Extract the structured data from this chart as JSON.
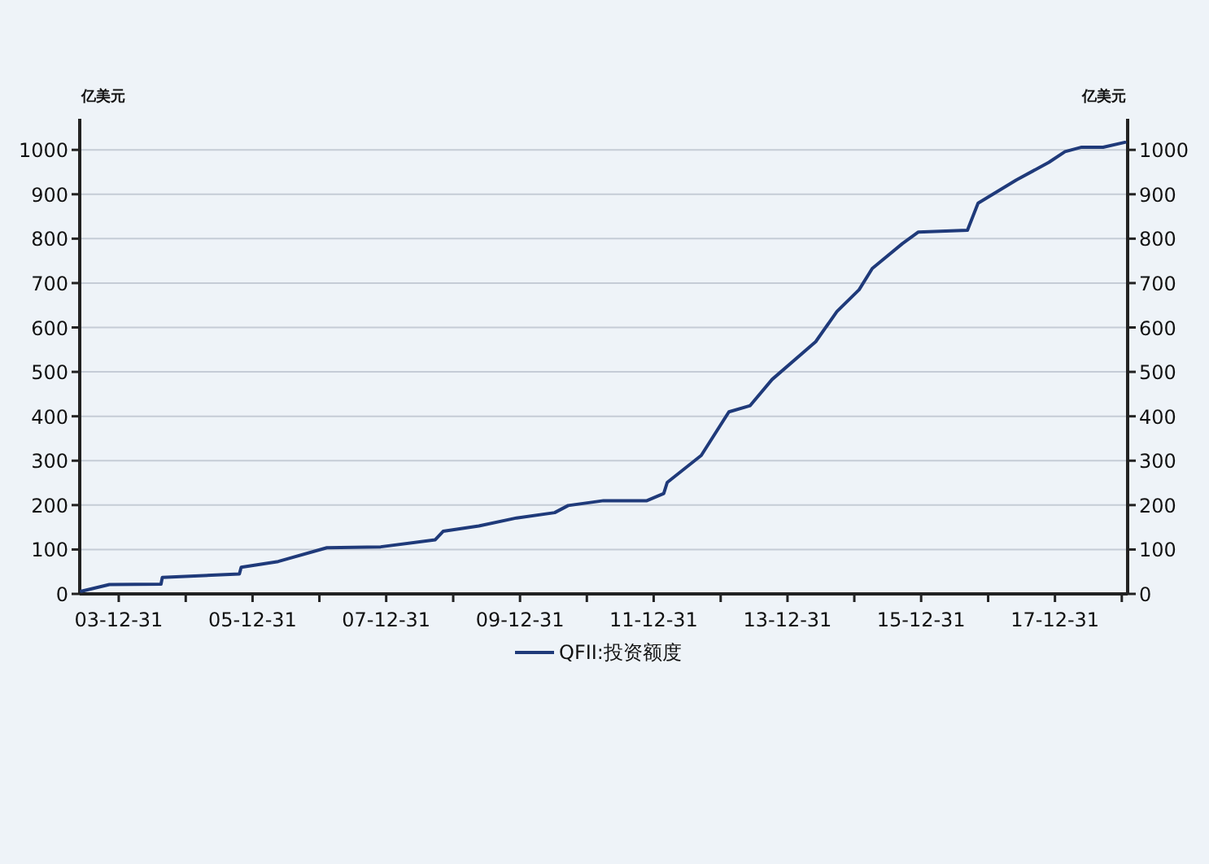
{
  "chart_data": {
    "type": "line",
    "ylabel": "亿美元",
    "y2label": "亿美元",
    "x": [
      "2003-06-10",
      "2003-11-10",
      "2004-08-18",
      "2004-08-25",
      "2005-10-20",
      "2005-10-30",
      "2006-05-20",
      "2007-02-10",
      "2007-12-01",
      "2008-09-24",
      "2008-11-06",
      "2009-05-20",
      "2009-12-12",
      "2010-07-08",
      "2010-09-20",
      "2011-04-01",
      "2011-11-24",
      "2012-02-24",
      "2012-03-14",
      "2012-09-16",
      "2013-02-14",
      "2013-06-10",
      "2013-10-08",
      "2014-06-03",
      "2014-09-27",
      "2015-01-26",
      "2015-04-08",
      "2015-09-20",
      "2015-12-16",
      "2016-09-09",
      "2016-11-06",
      "2017-06-03",
      "2017-11-28",
      "2018-02-24",
      "2018-05-26",
      "2018-09-20",
      "2019-01-18"
    ],
    "series": [
      {
        "name": "QFII:投资额度",
        "color": "#1f3a7a",
        "values": [
          6,
          21,
          22,
          37,
          45,
          60,
          73,
          104,
          106,
          122,
          141,
          153,
          171,
          183,
          199,
          210,
          210,
          226,
          251,
          312,
          410,
          424,
          483,
          568,
          636,
          685,
          733,
          789,
          815,
          819,
          880,
          932,
          972,
          996,
          1006,
          1006,
          1017
        ]
      }
    ],
    "xlim": [
      "2003-06",
      "2019-02"
    ],
    "xticks": [
      {
        "value": "2003-12-31",
        "label": "03-12-31"
      },
      {
        "value": "2004-12-31",
        "label": null
      },
      {
        "value": "2005-12-31",
        "label": "05-12-31"
      },
      {
        "value": "2006-12-31",
        "label": null
      },
      {
        "value": "2007-12-31",
        "label": "07-12-31"
      },
      {
        "value": "2008-12-31",
        "label": null
      },
      {
        "value": "2009-12-31",
        "label": "09-12-31"
      },
      {
        "value": "2010-12-31",
        "label": null
      },
      {
        "value": "2011-12-31",
        "label": "11-12-31"
      },
      {
        "value": "2012-12-31",
        "label": null
      },
      {
        "value": "2013-12-31",
        "label": "13-12-31"
      },
      {
        "value": "2014-12-31",
        "label": null
      },
      {
        "value": "2015-12-31",
        "label": "15-12-31"
      },
      {
        "value": "2016-12-31",
        "label": null
      },
      {
        "value": "2017-12-31",
        "label": "17-12-31"
      },
      {
        "value": "2018-12-31",
        "label": null
      }
    ],
    "ylim": [
      0,
      1070
    ],
    "yticks": [
      0,
      100,
      200,
      300,
      400,
      500,
      600,
      700,
      800,
      900,
      1000
    ],
    "y2lim": [
      0,
      1070
    ],
    "y2ticks": [
      0,
      100,
      200,
      300,
      400,
      500,
      600,
      700,
      800,
      900,
      1000
    ],
    "grid": "y",
    "legend": "bottom"
  }
}
